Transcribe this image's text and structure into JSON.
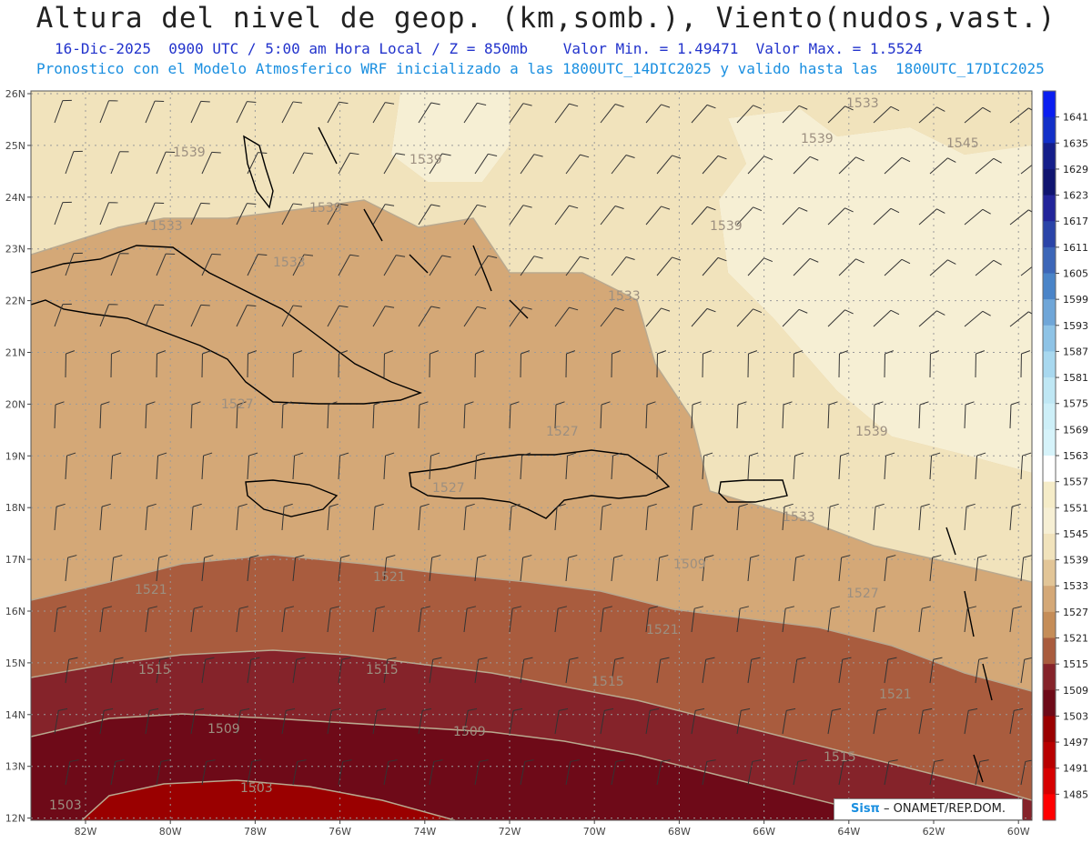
{
  "title": "Altura del nivel de geop. (km,somb.), Viento(nudos,vast.)",
  "subtitle": {
    "date": "16-Dic-2025",
    "time": "0900 UTC / 5:00 am Hora Local / Z = 850mb",
    "min_label": "Valor Min. = 1.49471",
    "max_label": "Valor Max. = 1.5524"
  },
  "info_line": "Pronostico con el Modelo Atmosferico WRF inicializado a las 1800UTC_14DIC2025 y valido hasta las  1800UTC_17DIC2025",
  "credit": {
    "brand": "Sisπ",
    "text": " – ONAMET/REP.DOM."
  },
  "map": {
    "lon_labels": [
      "82W",
      "80W",
      "78W",
      "76W",
      "74W",
      "72W",
      "70W",
      "68W",
      "66W",
      "64W",
      "62W",
      "60W"
    ],
    "lat_labels": [
      "26N",
      "25N",
      "24N",
      "23N",
      "22N",
      "21N",
      "20N",
      "19N",
      "18N",
      "17N",
      "16N",
      "15N",
      "14N",
      "13N",
      "12N"
    ],
    "contour_labels": [
      {
        "text": "1539"
      },
      {
        "text": "1539"
      },
      {
        "text": "1539"
      },
      {
        "text": "1539"
      },
      {
        "text": "1539"
      },
      {
        "text": "1539"
      },
      {
        "text": "1545"
      },
      {
        "text": "1533"
      },
      {
        "text": "1533"
      },
      {
        "text": "1533"
      },
      {
        "text": "1527"
      },
      {
        "text": "1527"
      },
      {
        "text": "1527"
      },
      {
        "text": "1533"
      },
      {
        "text": "1521"
      },
      {
        "text": "1521"
      },
      {
        "text": "1521"
      },
      {
        "text": "1527"
      },
      {
        "text": "1515"
      },
      {
        "text": "1515"
      },
      {
        "text": "1515"
      },
      {
        "text": "1509"
      },
      {
        "text": "1509"
      },
      {
        "text": "1521"
      },
      {
        "text": "1503"
      },
      {
        "text": "1503"
      },
      {
        "text": "1515"
      },
      {
        "text": "1533"
      },
      {
        "text": "1509"
      }
    ]
  },
  "colorbar": {
    "levels": [
      "1641",
      "1635",
      "1629",
      "1623",
      "1617",
      "1611",
      "1605",
      "1599",
      "1593",
      "1587",
      "1581",
      "1575",
      "1569",
      "1563",
      "1557",
      "1551",
      "1545",
      "1539",
      "1533",
      "1527",
      "1521",
      "1515",
      "1509",
      "1503",
      "1497",
      "1491",
      "1485"
    ],
    "colors": [
      "#0a1ef0",
      "#1230c8",
      "#141e8a",
      "#0f1470",
      "#22249a",
      "#2a44a8",
      "#3c66b8",
      "#4a84c8",
      "#6fa6d8",
      "#8ec3e6",
      "#a8d8ef",
      "#bfe7f4",
      "#cdeff8",
      "#d6f3fa",
      "#ffffff",
      "#f5ecc8",
      "#f6efd4",
      "#f1e3bc",
      "#e2c597",
      "#d4a877",
      "#c58d58",
      "#a95c3e",
      "#85232a",
      "#6e0a18",
      "#9a0000",
      "#b80000",
      "#d60000",
      "#ff0000"
    ]
  }
}
